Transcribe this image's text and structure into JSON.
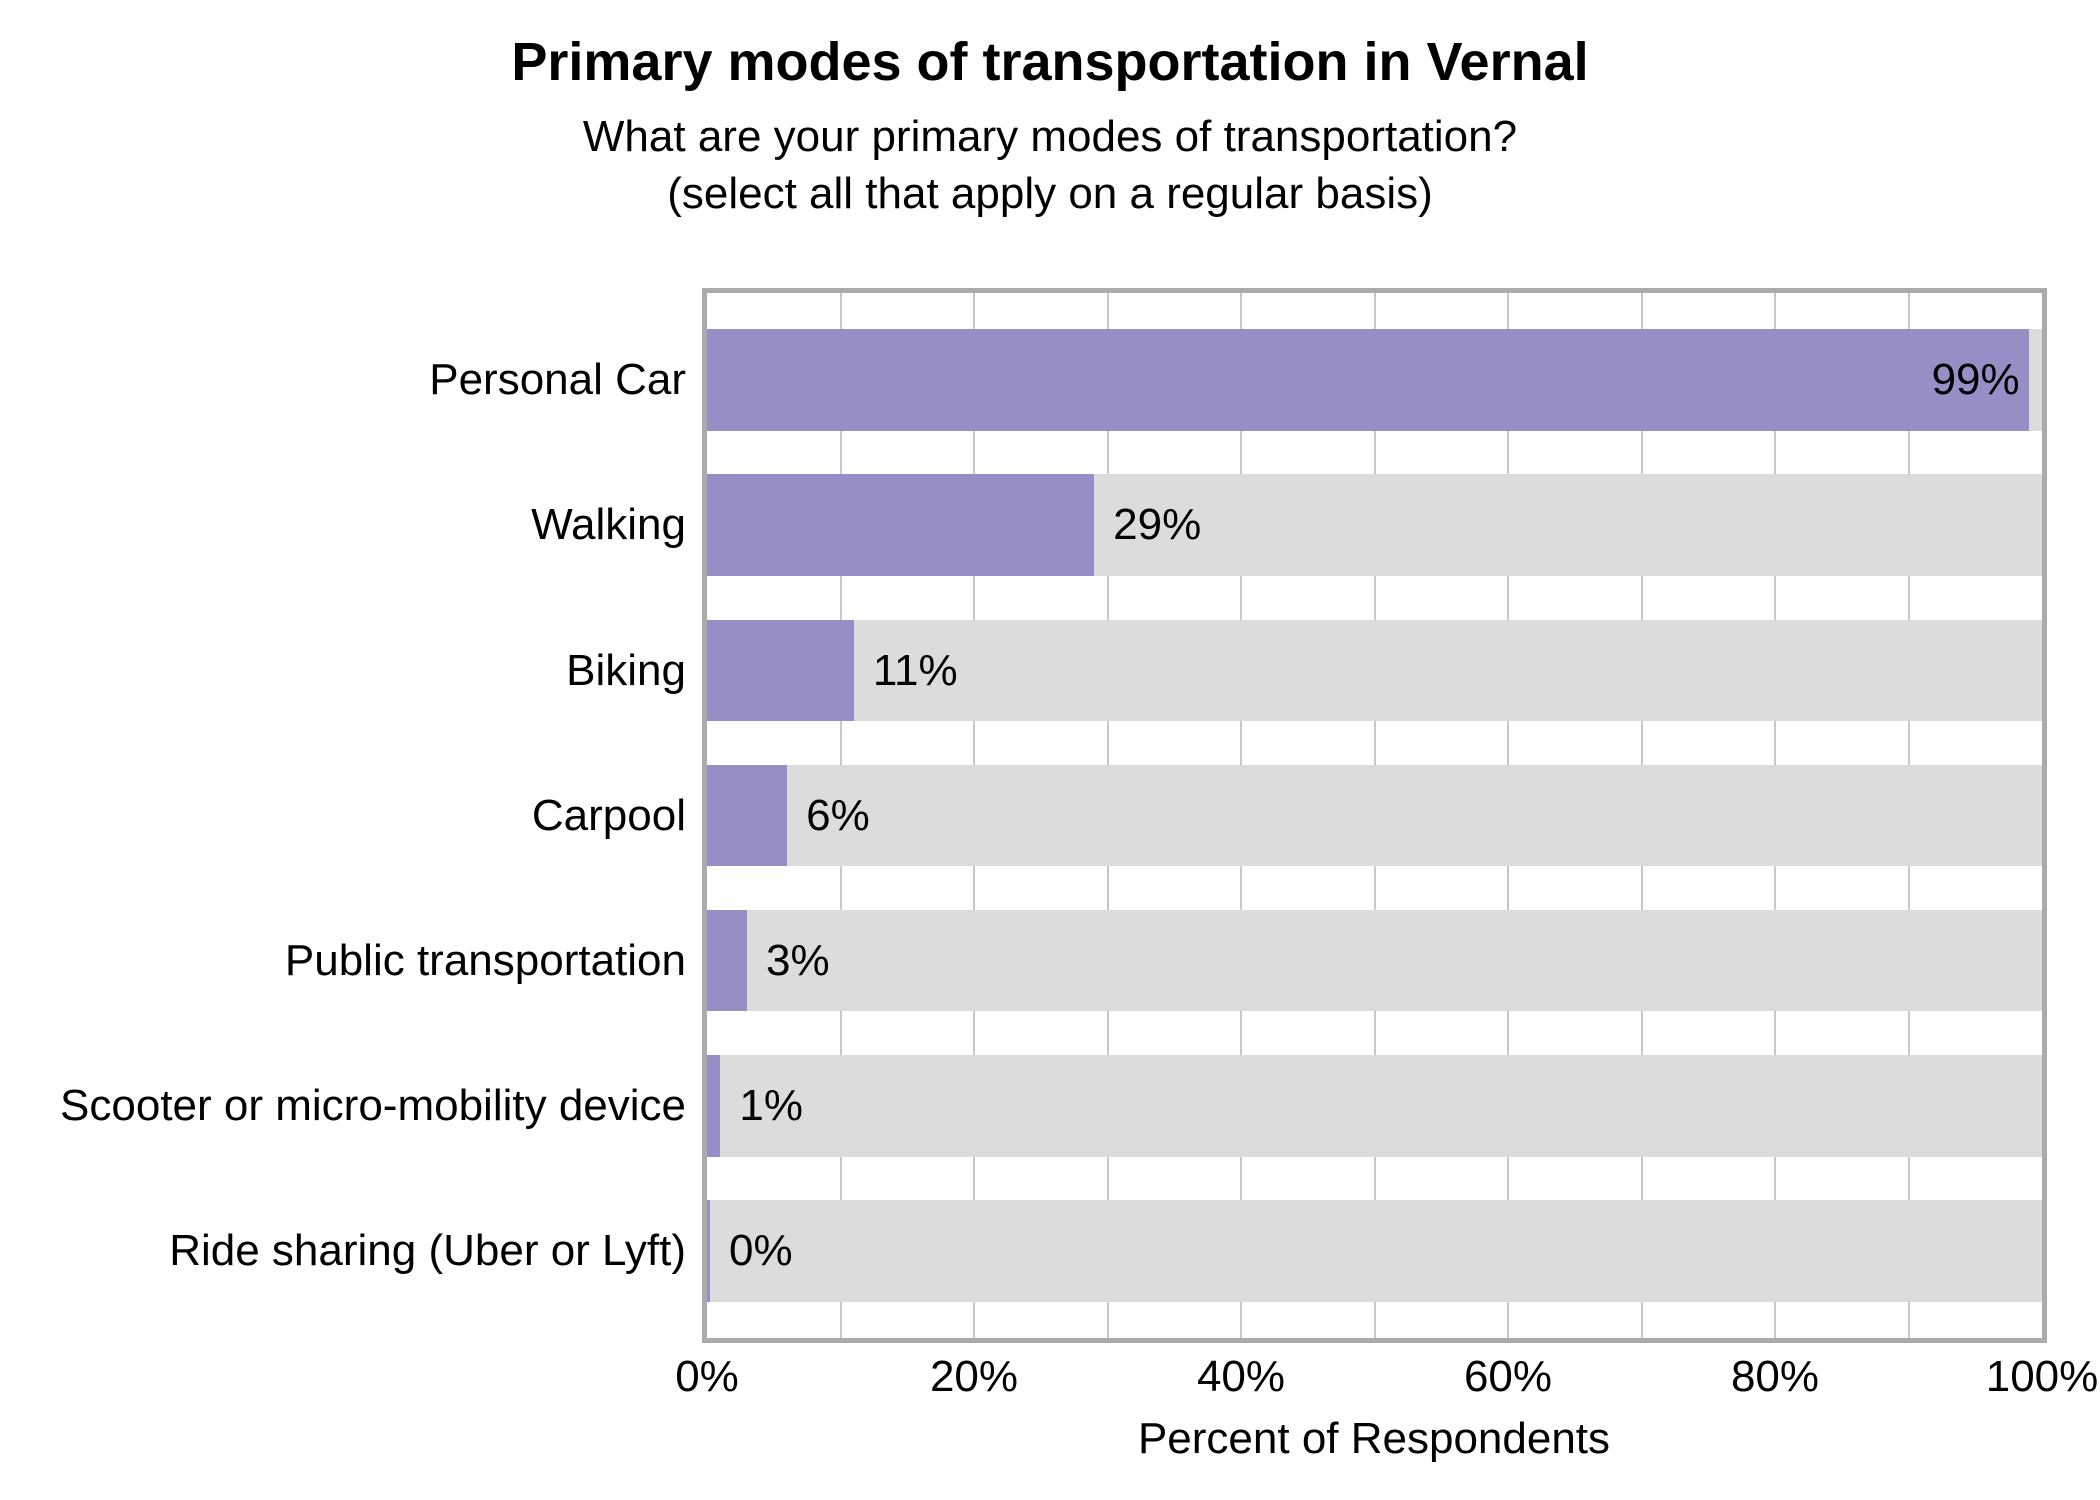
{
  "page": {
    "title": "Primary modes of transportation in Vernal",
    "subtitle_line1": "What are your primary modes of transportation?",
    "subtitle_line2": "(select all that apply on a regular basis)"
  },
  "chart_data": {
    "type": "bar",
    "orientation": "horizontal",
    "title": "Primary modes of transportation in Vernal",
    "subtitle": "What are your primary modes of transportation? (select all that apply on a regular basis)",
    "xlabel": "Percent of Respondents",
    "ylabel": "",
    "categories": [
      "Personal Car",
      "Walking",
      "Biking",
      "Carpool",
      "Public transportation",
      "Scooter or micro-mobility device",
      "Ride sharing (Uber or Lyft)"
    ],
    "values": [
      99,
      29,
      11,
      6,
      3,
      1,
      0
    ],
    "value_labels": [
      "99%",
      "29%",
      "11%",
      "6%",
      "3%",
      "1%",
      "0%"
    ],
    "xlim": [
      0,
      100
    ],
    "x_ticks": [
      {
        "value": 0,
        "label": "0%"
      },
      {
        "value": 20,
        "label": "20%"
      },
      {
        "value": 40,
        "label": "40%"
      },
      {
        "value": 60,
        "label": "60%"
      },
      {
        "value": 80,
        "label": "80%"
      },
      {
        "value": 100,
        "label": "100%"
      }
    ],
    "gridline_step_percent": 10,
    "grid": "vertical",
    "legend_position": "none",
    "colors": {
      "bar": "#968FC6",
      "track": "#DCDCDC",
      "gridline": "#C8C8C8",
      "border": "#ABABAB",
      "text": "#000000",
      "background": "#FFFFFF"
    }
  }
}
